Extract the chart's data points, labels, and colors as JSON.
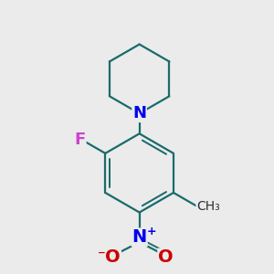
{
  "background_color": "#ebebeb",
  "bond_color": "#1a6b6b",
  "nitrogen_color": "#0000ee",
  "oxygen_color": "#cc0000",
  "fluorine_color": "#cc44cc",
  "line_width": 1.6,
  "figsize": [
    3.0,
    3.0
  ],
  "dpi": 100,
  "xlim": [
    -2.2,
    2.4
  ],
  "ylim": [
    -3.0,
    2.6
  ]
}
